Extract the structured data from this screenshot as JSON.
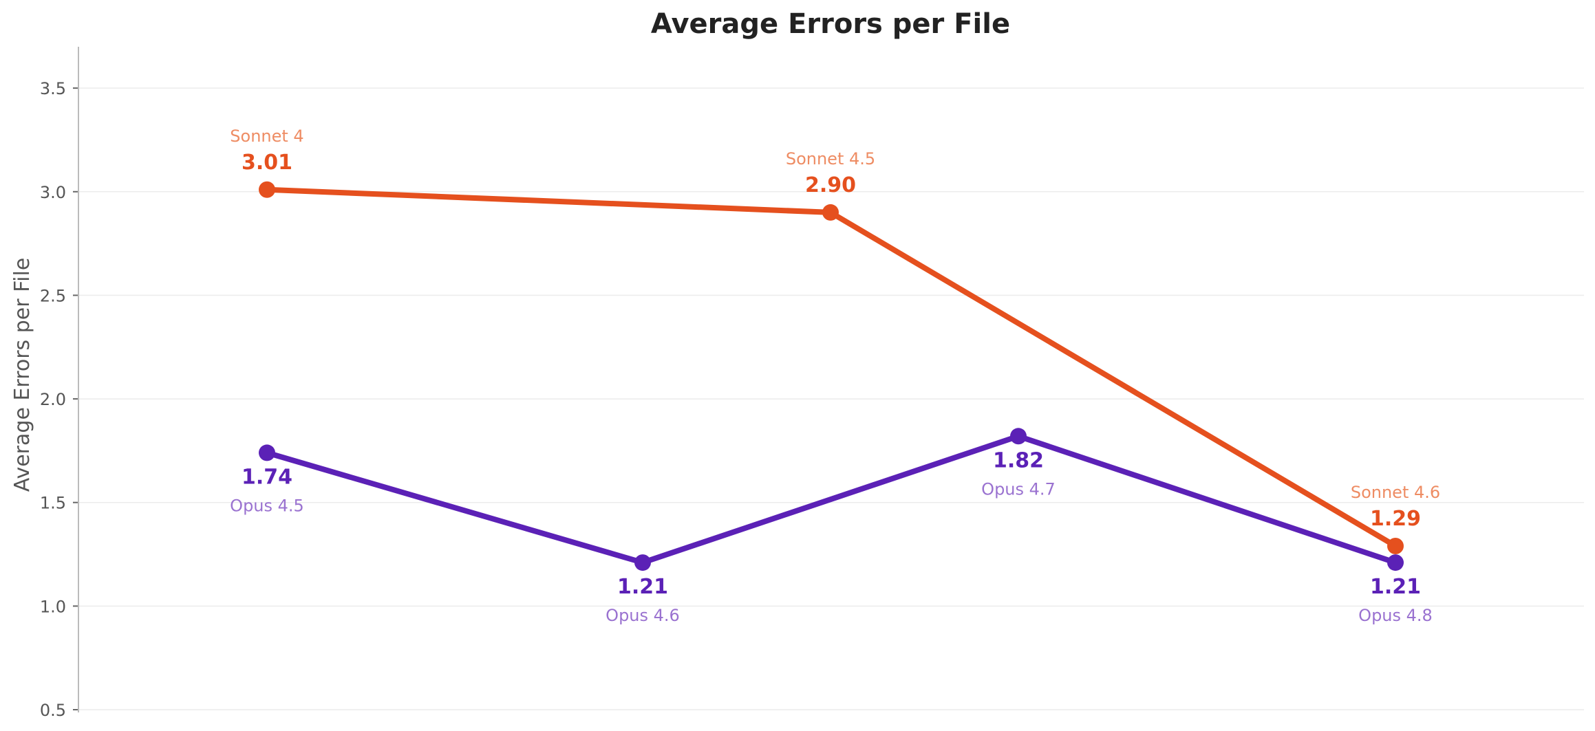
{
  "chart_data": {
    "type": "line",
    "title": "Average Errors per File",
    "xlabel": "",
    "ylabel": "Average Errors per File",
    "ylim": [
      0.5,
      3.6
    ],
    "yticks": [
      "0.5",
      "1.0",
      "1.5",
      "2.0",
      "2.5",
      "3.0",
      "3.5"
    ],
    "x_axis_labels_visible": false,
    "grid": "horizontal",
    "series": [
      {
        "color": "#E5501E",
        "label_color": "#EE8C63",
        "label_position": "above",
        "points": [
          {
            "x": 0,
            "y": 3.01,
            "value_label": "3.01",
            "name": "Sonnet 4"
          },
          {
            "x": 1.5,
            "y": 2.9,
            "value_label": "2.90",
            "name": "Sonnet 4.5"
          },
          {
            "x": 3,
            "y": 1.29,
            "value_label": "1.29",
            "name": "Sonnet 4.6"
          }
        ]
      },
      {
        "color": "#5B21B6",
        "label_color": "#9A72D0",
        "label_position": "below",
        "points": [
          {
            "x": 0,
            "y": 1.74,
            "value_label": "1.74",
            "name": "Opus 4.5"
          },
          {
            "x": 1,
            "y": 1.21,
            "value_label": "1.21",
            "name": "Opus 4.6"
          },
          {
            "x": 2,
            "y": 1.82,
            "value_label": "1.82",
            "name": "Opus 4.7"
          },
          {
            "x": 3,
            "y": 1.21,
            "value_label": "1.21",
            "name": "Opus 4.8"
          }
        ]
      }
    ]
  }
}
